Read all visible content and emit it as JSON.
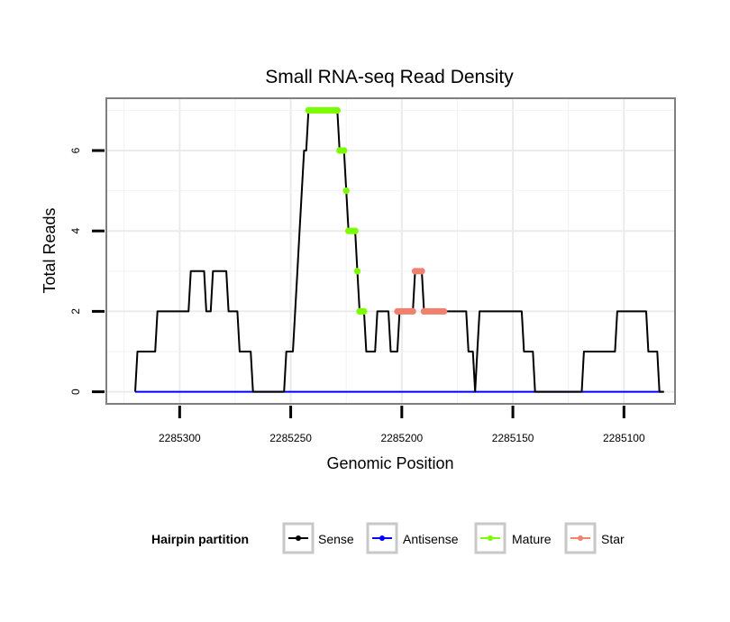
{
  "chart_data": {
    "type": "line",
    "title": "Small RNA-seq Read Density",
    "xlabel": "Genomic Position",
    "ylabel": "Total Reads",
    "xlim": [
      2285333,
      2285077
    ],
    "ylim": [
      -0.3,
      7.3
    ],
    "x_reversed": true,
    "x_ticks": [
      2285300,
      2285250,
      2285200,
      2285150,
      2285100
    ],
    "x_tick_labels": [
      "2285300",
      "2285250",
      "2285200",
      "2285150",
      "2285100"
    ],
    "y_ticks": [
      0,
      2,
      4,
      6
    ],
    "y_tick_labels": [
      "0",
      "2",
      "4",
      "6"
    ],
    "grid": true,
    "legend": {
      "title": "Hairpin partition",
      "position": "bottom",
      "entries": [
        {
          "label": "Sense",
          "color": "#000000"
        },
        {
          "label": "Antisense",
          "color": "#0000ff"
        },
        {
          "label": "Mature",
          "color": "#7cfc00"
        },
        {
          "label": "Star",
          "color": "#f08070"
        }
      ]
    },
    "series": [
      {
        "name": "Sense",
        "color": "#000000",
        "points": [
          [
            2285320,
            0
          ],
          [
            2285319,
            1
          ],
          [
            2285311,
            1
          ],
          [
            2285310,
            2
          ],
          [
            2285296,
            2
          ],
          [
            2285295,
            3
          ],
          [
            2285289,
            3
          ],
          [
            2285288,
            2
          ],
          [
            2285286,
            2
          ],
          [
            2285285,
            3
          ],
          [
            2285279,
            3
          ],
          [
            2285278,
            2
          ],
          [
            2285274,
            2
          ],
          [
            2285273,
            1
          ],
          [
            2285268,
            1
          ],
          [
            2285267,
            0
          ],
          [
            2285253,
            0
          ],
          [
            2285252,
            1
          ],
          [
            2285249,
            1
          ],
          [
            2285248,
            2
          ],
          [
            2285247,
            3
          ],
          [
            2285246,
            4
          ],
          [
            2285245,
            5
          ],
          [
            2285244,
            6
          ],
          [
            2285243,
            6
          ],
          [
            2285242,
            7
          ],
          [
            2285229,
            7
          ],
          [
            2285228,
            6
          ],
          [
            2285226,
            6
          ],
          [
            2285225,
            5
          ],
          [
            2285224,
            4
          ],
          [
            2285221,
            4
          ],
          [
            2285220,
            3
          ],
          [
            2285219,
            2
          ],
          [
            2285217,
            2
          ],
          [
            2285216,
            1
          ],
          [
            2285212,
            1
          ],
          [
            2285211,
            2
          ],
          [
            2285206,
            2
          ],
          [
            2285205,
            1
          ],
          [
            2285202,
            1
          ],
          [
            2285201,
            2
          ],
          [
            2285195,
            2
          ],
          [
            2285194,
            3
          ],
          [
            2285191,
            3
          ],
          [
            2285190,
            2
          ],
          [
            2285171,
            2
          ],
          [
            2285170,
            1
          ],
          [
            2285168,
            1
          ],
          [
            2285167,
            0
          ],
          [
            2285166,
            1
          ],
          [
            2285165,
            2
          ],
          [
            2285146,
            2
          ],
          [
            2285145,
            1
          ],
          [
            2285141,
            1
          ],
          [
            2285140,
            0
          ],
          [
            2285119,
            0
          ],
          [
            2285118,
            1
          ],
          [
            2285104,
            1
          ],
          [
            2285103,
            2
          ],
          [
            2285090,
            2
          ],
          [
            2285089,
            1
          ],
          [
            2285085,
            1
          ],
          [
            2285084,
            0
          ],
          [
            2285082,
            0
          ]
        ]
      },
      {
        "name": "Antisense",
        "color": "#0000ff",
        "points": [
          [
            2285320,
            0
          ],
          [
            2285082,
            0
          ]
        ]
      },
      {
        "name": "Mature",
        "color": "#7cfc00",
        "points": [
          [
            2285242,
            7
          ],
          [
            2285229,
            7
          ],
          [
            2285228,
            6
          ],
          [
            2285226,
            6
          ],
          [
            2285225,
            5
          ],
          [
            2285224,
            4
          ],
          [
            2285221,
            4
          ],
          [
            2285220,
            3
          ],
          [
            2285219,
            2
          ],
          [
            2285217,
            2
          ]
        ]
      },
      {
        "name": "Star",
        "color": "#f08070",
        "points": [
          [
            2285202,
            2
          ],
          [
            2285195,
            2
          ],
          [
            2285194,
            3
          ],
          [
            2285191,
            3
          ],
          [
            2285190,
            2
          ],
          [
            2285181,
            2
          ]
        ]
      }
    ]
  }
}
